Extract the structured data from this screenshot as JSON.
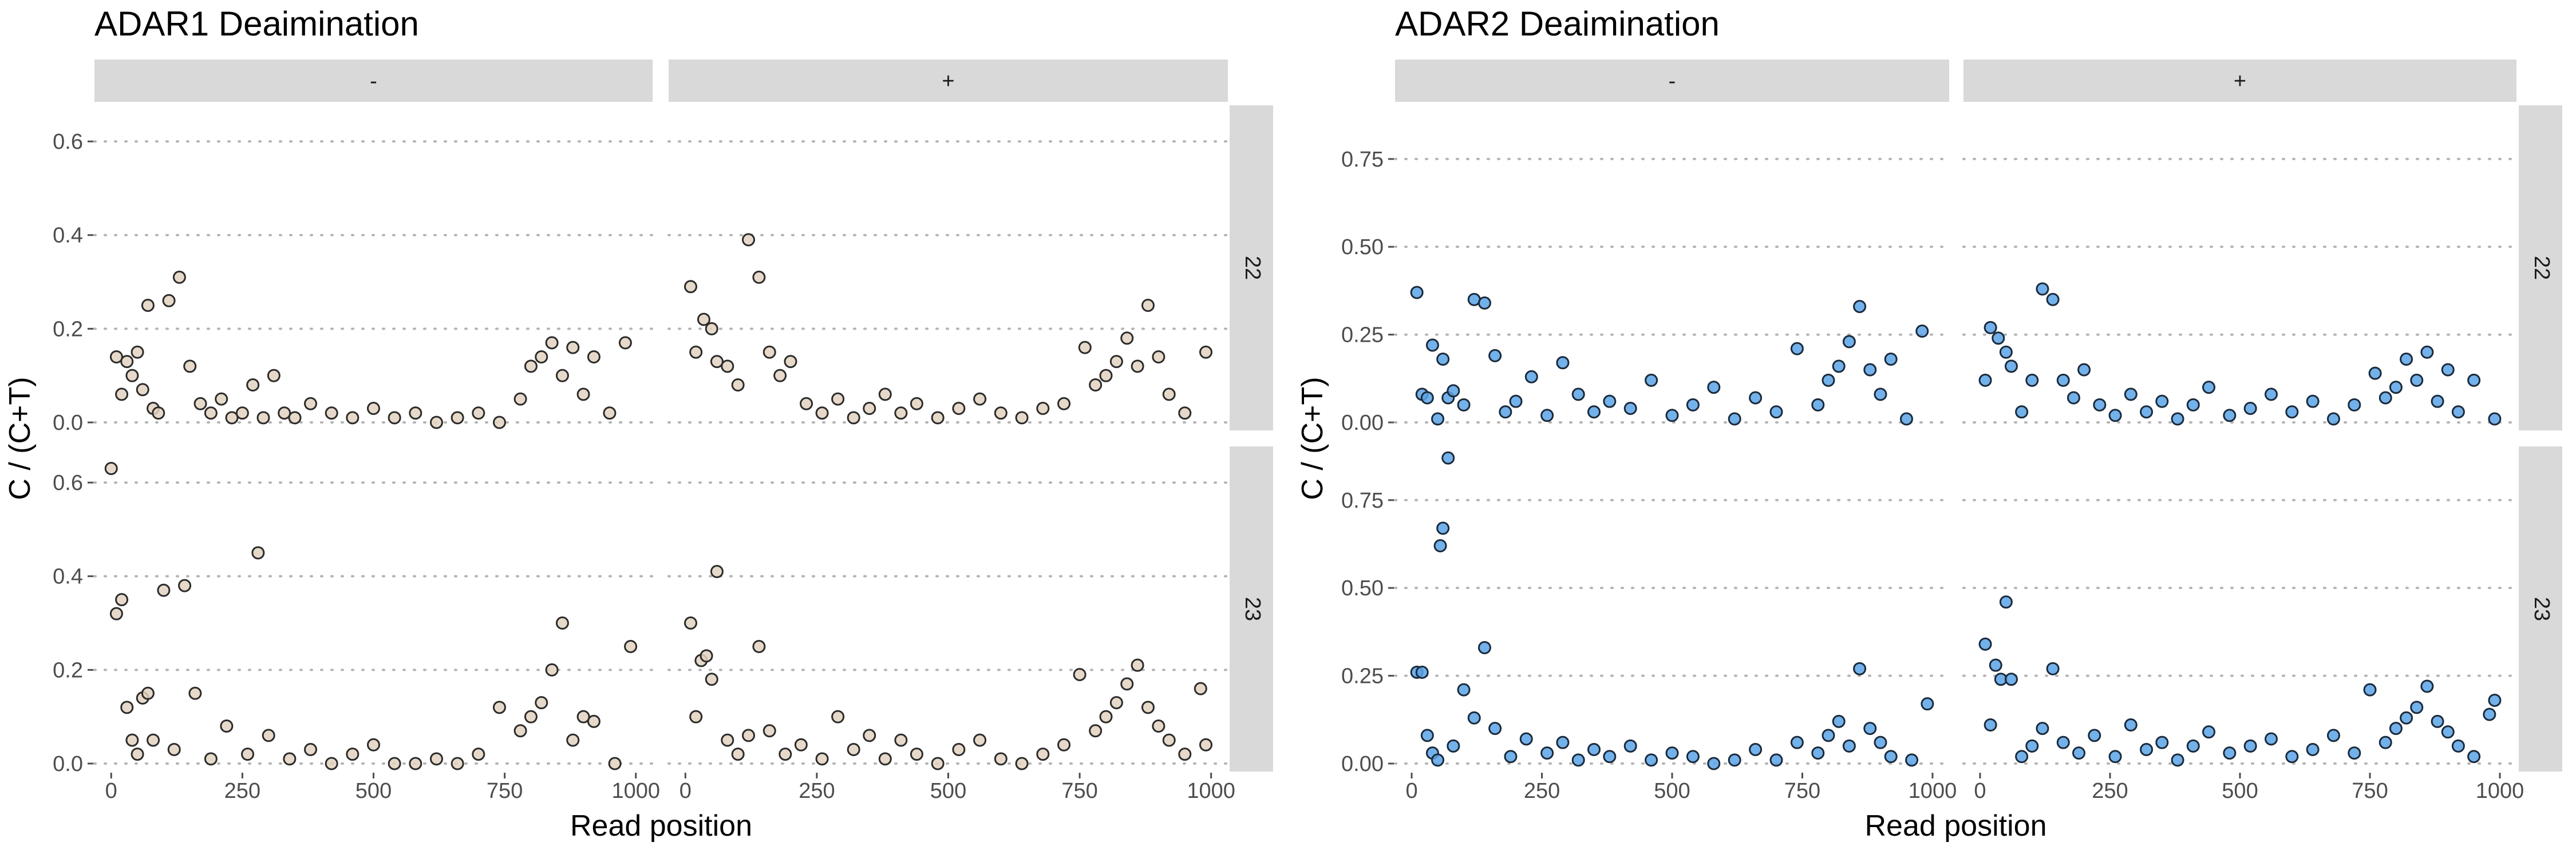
{
  "chart_data": [
    {
      "type": "scatter",
      "title": "ADAR1 Deaimination",
      "xlabel": "Read position",
      "ylabel": "C / (C+T)",
      "fill_color": "#e3d2bf",
      "stroke_color": "#2b2b2b",
      "xlim": [
        0,
        1000
      ],
      "ylim": [
        0,
        0.66
      ],
      "x_ticks": [
        0,
        250,
        500,
        750,
        1000
      ],
      "x_tick_labels": [
        "0",
        "250",
        "500",
        "750",
        "1000"
      ],
      "y_ticks": [
        0.0,
        0.2,
        0.4,
        0.6
      ],
      "y_tick_labels": [
        "0.0",
        "0.2",
        "0.4",
        "0.6"
      ],
      "columns": [
        "-",
        "+"
      ],
      "rows": [
        "22",
        "23"
      ],
      "grid": true,
      "panels": [
        {
          "column": "-",
          "row": "22",
          "x": [
            10,
            20,
            30,
            40,
            50,
            60,
            70,
            80,
            90,
            110,
            130,
            150,
            170,
            190,
            210,
            230,
            250,
            270,
            290,
            310,
            330,
            350,
            380,
            420,
            460,
            500,
            540,
            580,
            620,
            660,
            700,
            740,
            780,
            800,
            820,
            840,
            860,
            880,
            900,
            920,
            950,
            980
          ],
          "y": [
            0.14,
            0.06,
            0.13,
            0.1,
            0.15,
            0.07,
            0.25,
            0.03,
            0.02,
            0.26,
            0.31,
            0.12,
            0.04,
            0.02,
            0.05,
            0.01,
            0.02,
            0.08,
            0.01,
            0.1,
            0.02,
            0.01,
            0.04,
            0.02,
            0.01,
            0.03,
            0.01,
            0.02,
            0.0,
            0.01,
            0.02,
            0.0,
            0.05,
            0.12,
            0.14,
            0.17,
            0.1,
            0.16,
            0.06,
            0.14,
            0.02,
            0.17
          ]
        },
        {
          "column": "+",
          "row": "22",
          "x": [
            10,
            20,
            35,
            50,
            60,
            80,
            100,
            120,
            140,
            160,
            180,
            200,
            230,
            260,
            290,
            320,
            350,
            380,
            410,
            440,
            480,
            520,
            560,
            600,
            640,
            680,
            720,
            760,
            780,
            800,
            820,
            840,
            860,
            880,
            900,
            920,
            950,
            990
          ],
          "y": [
            0.29,
            0.15,
            0.22,
            0.2,
            0.13,
            0.12,
            0.08,
            0.39,
            0.31,
            0.15,
            0.1,
            0.13,
            0.04,
            0.02,
            0.05,
            0.01,
            0.03,
            0.06,
            0.02,
            0.04,
            0.01,
            0.03,
            0.05,
            0.02,
            0.01,
            0.03,
            0.04,
            0.16,
            0.08,
            0.1,
            0.13,
            0.18,
            0.12,
            0.25,
            0.14,
            0.06,
            0.02,
            0.15
          ]
        },
        {
          "column": "-",
          "row": "23",
          "x": [
            0,
            10,
            20,
            30,
            40,
            50,
            60,
            70,
            80,
            100,
            120,
            140,
            160,
            190,
            220,
            260,
            280,
            300,
            340,
            380,
            420,
            460,
            500,
            540,
            580,
            620,
            660,
            700,
            740,
            780,
            800,
            820,
            840,
            860,
            880,
            900,
            920,
            960,
            990
          ],
          "y": [
            0.63,
            0.32,
            0.35,
            0.12,
            0.05,
            0.02,
            0.14,
            0.15,
            0.05,
            0.37,
            0.03,
            0.38,
            0.15,
            0.01,
            0.08,
            0.02,
            0.45,
            0.06,
            0.01,
            0.03,
            0.0,
            0.02,
            0.04,
            0.0,
            0.0,
            0.01,
            0.0,
            0.02,
            0.12,
            0.07,
            0.1,
            0.13,
            0.2,
            0.3,
            0.05,
            0.1,
            0.09,
            0.0,
            0.25
          ]
        },
        {
          "column": "+",
          "row": "23",
          "x": [
            10,
            20,
            30,
            40,
            50,
            60,
            80,
            100,
            120,
            140,
            160,
            190,
            220,
            260,
            290,
            320,
            350,
            380,
            410,
            440,
            480,
            520,
            560,
            600,
            640,
            680,
            720,
            750,
            780,
            800,
            820,
            840,
            860,
            880,
            900,
            920,
            950,
            980,
            990
          ],
          "y": [
            0.3,
            0.1,
            0.22,
            0.23,
            0.18,
            0.41,
            0.05,
            0.02,
            0.06,
            0.25,
            0.07,
            0.02,
            0.04,
            0.01,
            0.1,
            0.03,
            0.06,
            0.01,
            0.05,
            0.02,
            0.0,
            0.03,
            0.05,
            0.01,
            0.0,
            0.02,
            0.04,
            0.19,
            0.07,
            0.1,
            0.13,
            0.17,
            0.21,
            0.12,
            0.08,
            0.05,
            0.02,
            0.16,
            0.04
          ]
        }
      ]
    },
    {
      "type": "scatter",
      "title": "ADAR2 Deaimination",
      "xlabel": "Read position",
      "ylabel": "C / (C+T)",
      "fill_color": "#5aa3e8",
      "stroke_color": "#1b2a3a",
      "xlim": [
        0,
        1000
      ],
      "ylim": [
        0,
        0.88
      ],
      "x_ticks": [
        0,
        250,
        500,
        750,
        1000
      ],
      "x_tick_labels": [
        "0",
        "250",
        "500",
        "750",
        "1000"
      ],
      "y_ticks": [
        0.0,
        0.25,
        0.5,
        0.75
      ],
      "y_tick_labels": [
        "0.00",
        "0.25",
        "0.50",
        "0.75"
      ],
      "columns": [
        "-",
        "+"
      ],
      "rows": [
        "22",
        "23"
      ],
      "grid": true,
      "panels": [
        {
          "column": "-",
          "row": "22",
          "x": [
            10,
            20,
            30,
            40,
            50,
            60,
            70,
            80,
            100,
            120,
            140,
            160,
            180,
            200,
            230,
            260,
            290,
            320,
            350,
            380,
            420,
            460,
            500,
            540,
            580,
            620,
            660,
            700,
            740,
            780,
            800,
            820,
            840,
            860,
            880,
            900,
            920,
            950,
            980
          ],
          "y": [
            0.37,
            0.08,
            0.07,
            0.22,
            0.01,
            0.18,
            0.07,
            0.09,
            0.05,
            0.35,
            0.34,
            0.19,
            0.03,
            0.06,
            0.13,
            0.02,
            0.17,
            0.08,
            0.03,
            0.06,
            0.04,
            0.12,
            0.02,
            0.05,
            0.1,
            0.01,
            0.07,
            0.03,
            0.21,
            0.05,
            0.12,
            0.16,
            0.23,
            0.33,
            0.15,
            0.08,
            0.18,
            0.01,
            0.26
          ]
        },
        {
          "column": "+",
          "row": "22",
          "x": [
            10,
            20,
            35,
            50,
            60,
            80,
            100,
            120,
            140,
            160,
            180,
            200,
            230,
            260,
            290,
            320,
            350,
            380,
            410,
            440,
            480,
            520,
            560,
            600,
            640,
            680,
            720,
            760,
            780,
            800,
            820,
            840,
            860,
            880,
            900,
            920,
            950,
            990
          ],
          "y": [
            0.12,
            0.27,
            0.24,
            0.2,
            0.16,
            0.03,
            0.12,
            0.38,
            0.35,
            0.12,
            0.07,
            0.15,
            0.05,
            0.02,
            0.08,
            0.03,
            0.06,
            0.01,
            0.05,
            0.1,
            0.02,
            0.04,
            0.08,
            0.03,
            0.06,
            0.01,
            0.05,
            0.14,
            0.07,
            0.1,
            0.18,
            0.12,
            0.2,
            0.06,
            0.15,
            0.03,
            0.12,
            0.01
          ]
        },
        {
          "column": "-",
          "row": "23",
          "x": [
            10,
            20,
            30,
            40,
            50,
            55,
            60,
            70,
            80,
            100,
            120,
            140,
            160,
            190,
            220,
            260,
            290,
            320,
            350,
            380,
            420,
            460,
            500,
            540,
            580,
            620,
            660,
            700,
            740,
            780,
            800,
            820,
            840,
            860,
            880,
            900,
            920,
            960,
            990
          ],
          "y": [
            0.26,
            0.26,
            0.08,
            0.03,
            0.01,
            0.62,
            0.67,
            0.87,
            0.05,
            0.21,
            0.13,
            0.33,
            0.1,
            0.02,
            0.07,
            0.03,
            0.06,
            0.01,
            0.04,
            0.02,
            0.05,
            0.01,
            0.03,
            0.02,
            0.0,
            0.01,
            0.04,
            0.01,
            0.06,
            0.03,
            0.08,
            0.12,
            0.05,
            0.27,
            0.1,
            0.06,
            0.02,
            0.01,
            0.17
          ]
        },
        {
          "column": "+",
          "row": "23",
          "x": [
            10,
            20,
            30,
            40,
            50,
            60,
            80,
            100,
            120,
            140,
            160,
            190,
            220,
            260,
            290,
            320,
            350,
            380,
            410,
            440,
            480,
            520,
            560,
            600,
            640,
            680,
            720,
            750,
            780,
            800,
            820,
            840,
            860,
            880,
            900,
            920,
            950,
            980,
            990
          ],
          "y": [
            0.34,
            0.11,
            0.28,
            0.24,
            0.46,
            0.24,
            0.02,
            0.05,
            0.1,
            0.27,
            0.06,
            0.03,
            0.08,
            0.02,
            0.11,
            0.04,
            0.06,
            0.01,
            0.05,
            0.09,
            0.03,
            0.05,
            0.07,
            0.02,
            0.04,
            0.08,
            0.03,
            0.21,
            0.06,
            0.1,
            0.13,
            0.16,
            0.22,
            0.12,
            0.09,
            0.05,
            0.02,
            0.14,
            0.18
          ]
        }
      ]
    }
  ]
}
